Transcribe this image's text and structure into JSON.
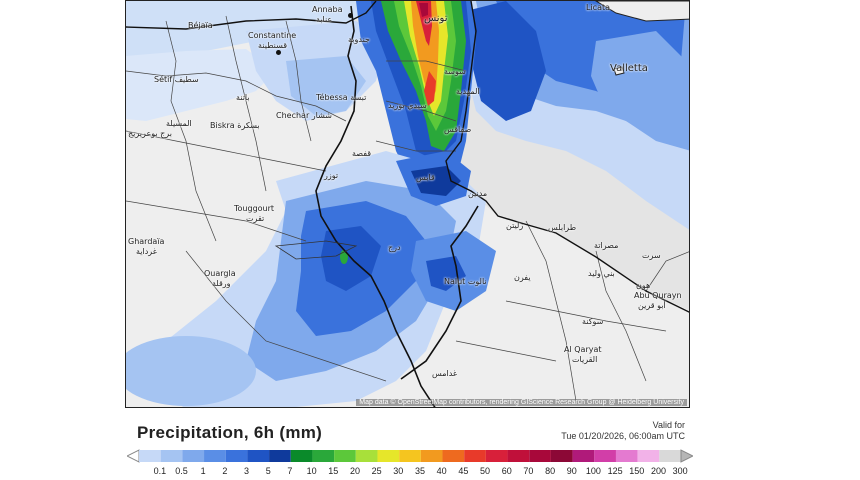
{
  "map": {
    "attribution": "Map data © OpenStreetMap contributors, rendering GIScience Research Group @ Heidelberg University",
    "labels": [
      {
        "id": "annaba",
        "text": "Annaba"
      },
      {
        "id": "annaba-ar",
        "text": "عنابة"
      },
      {
        "id": "bejaia",
        "text": "Béjaïa"
      },
      {
        "id": "constantine",
        "text": "Constantine"
      },
      {
        "id": "constantine-ar",
        "text": "قسنطينة"
      },
      {
        "id": "setif",
        "text": "Sétif سطيف"
      },
      {
        "id": "bordj",
        "text": "برج بوعريريج"
      },
      {
        "id": "tebessa",
        "text": "Tébessa تبسة"
      },
      {
        "id": "batna",
        "text": "باتنة"
      },
      {
        "id": "biskra",
        "text": "Biskra بسكرة"
      },
      {
        "id": "chechar",
        "text": "Chechar ششار"
      },
      {
        "id": "msila",
        "text": "المسيلة"
      },
      {
        "id": "touggourt",
        "text": "Touggourt"
      },
      {
        "id": "touggourt-ar",
        "text": "تقرت"
      },
      {
        "id": "ghardaia",
        "text": "Ghardaïa"
      },
      {
        "id": "ghardaia-ar",
        "text": "غرداية"
      },
      {
        "id": "ouargla",
        "text": "Ouargla"
      },
      {
        "id": "ouargla-ar",
        "text": "ورقلة"
      },
      {
        "id": "tunis",
        "text": "تونس"
      },
      {
        "id": "jendouba",
        "text": "جندوبة"
      },
      {
        "id": "sousse",
        "text": "سوسة"
      },
      {
        "id": "mahdia",
        "text": "المهدية"
      },
      {
        "id": "sidibouzid",
        "text": "سيدي بوزيد"
      },
      {
        "id": "sfax",
        "text": "صفاقس"
      },
      {
        "id": "gafsa",
        "text": "قفصة"
      },
      {
        "id": "tozeur",
        "text": "توزر"
      },
      {
        "id": "gabes",
        "text": "قابس"
      },
      {
        "id": "medenine",
        "text": "مدنين"
      },
      {
        "id": "tripoli",
        "text": "طرابلس"
      },
      {
        "id": "misrata",
        "text": "مصراتة"
      },
      {
        "id": "sirte",
        "text": "سرت"
      },
      {
        "id": "zliten",
        "text": "زليتن"
      },
      {
        "id": "nalut",
        "text": "Nalut نالوت"
      },
      {
        "id": "yafran",
        "text": "يفرن"
      },
      {
        "id": "bani-walid",
        "text": "بني وليد"
      },
      {
        "id": "ghadames",
        "text": "غدامس"
      },
      {
        "id": "hun",
        "text": "هون"
      },
      {
        "id": "abu-qurayn",
        "text": "Abu Qurayn"
      },
      {
        "id": "abu-qurayn-ar",
        "text": "أبو قرين"
      },
      {
        "id": "sokna",
        "text": "سوكنة"
      },
      {
        "id": "alqaryat",
        "text": "Al Qaryat"
      },
      {
        "id": "alqaryat-ar",
        "text": "القريات"
      },
      {
        "id": "derj",
        "text": "درج"
      },
      {
        "id": "valletta",
        "text": "Valletta"
      },
      {
        "id": "licata",
        "text": "Licata"
      }
    ]
  },
  "header": {
    "title": "Precipitation, 6h (mm)",
    "valid_label": "Valid for",
    "valid_time": "Tue 01/20/2026, 06:00am UTC"
  },
  "legend": {
    "labels": [
      "0.1",
      "0.5",
      "1",
      "2",
      "3",
      "5",
      "7",
      "10",
      "15",
      "20",
      "25",
      "30",
      "35",
      "40",
      "45",
      "50",
      "60",
      "70",
      "80",
      "90",
      "100",
      "125",
      "150",
      "200",
      "300"
    ],
    "colors": [
      "#c6d9f7",
      "#a5c4f2",
      "#7fa9ec",
      "#5a8ee6",
      "#3a72dc",
      "#1f54c4",
      "#0f3a9c",
      "#0a8a2a",
      "#2aa83a",
      "#5cc83a",
      "#a8e03a",
      "#e6e62a",
      "#f5c51f",
      "#f29a1f",
      "#ee6a1f",
      "#e83a2a",
      "#d8203a",
      "#c0103a",
      "#a8083a",
      "#8c0836",
      "#b01a7a",
      "#d23ea8",
      "#e47ad0",
      "#f2b2e8",
      "#d9d9d9"
    ]
  }
}
